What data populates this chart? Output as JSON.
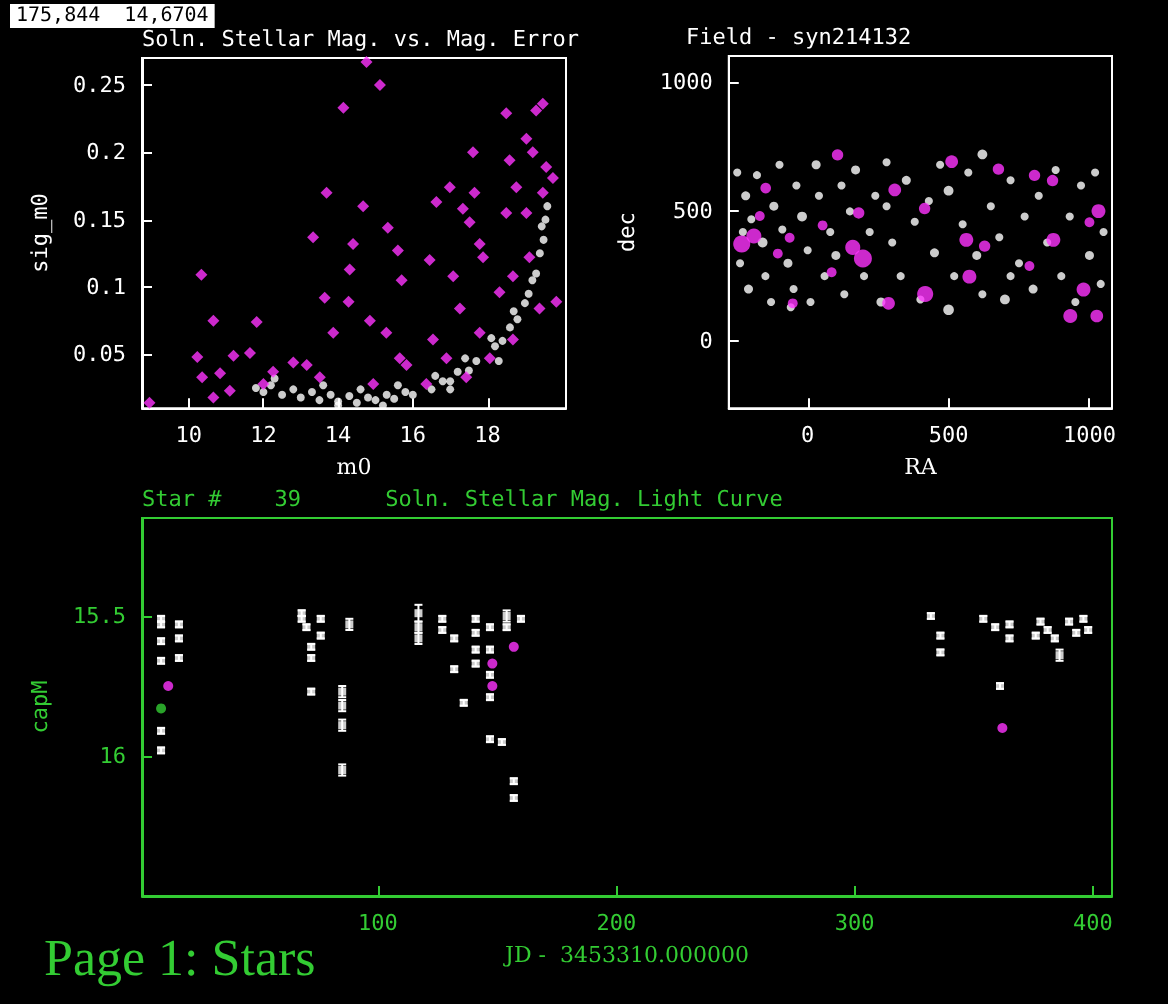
{
  "chart_data": [
    {
      "type": "scatter",
      "title": "Soln. Stellar Mag. vs. Mag. Error",
      "xlabel": "m0",
      "ylabel": "sig_m0",
      "annotations": [
        "175,844  14,6704"
      ],
      "xlim": [
        8.75,
        20.1
      ],
      "xticks": [
        10,
        12,
        14,
        16,
        18
      ],
      "ylim": [
        0.01,
        0.27
      ],
      "yticks": [
        0.05,
        0.1,
        0.15,
        0.2,
        0.25
      ],
      "series": [
        {
          "color": "#ffffff",
          "marker": "circle",
          "x": [
            11.8,
            12.0,
            12.2,
            12.5,
            12.8,
            13.0,
            13.3,
            13.5,
            13.8,
            14.0,
            14.3,
            14.5,
            14.8,
            15.0,
            15.3,
            15.5,
            15.8,
            16.0,
            16.3,
            16.5,
            16.8,
            17.0,
            17.2,
            17.5,
            17.7,
            18.0,
            18.2,
            18.4,
            18.6,
            18.8,
            19.0,
            19.1,
            19.2,
            19.3,
            19.4,
            19.5,
            19.55,
            19.6,
            12.3,
            13.6,
            14.6,
            15.6,
            16.6,
            17.4,
            18.1,
            18.7,
            19.2,
            19.45,
            17.0,
            18.3,
            15.2,
            14.0
          ],
          "values": [
            0.025,
            0.022,
            0.027,
            0.02,
            0.024,
            0.018,
            0.022,
            0.016,
            0.02,
            0.015,
            0.019,
            0.014,
            0.018,
            0.016,
            0.02,
            0.017,
            0.022,
            0.02,
            null,
            0.024,
            0.03,
            0.03,
            0.037,
            0.038,
            0.045,
            null,
            0.056,
            0.06,
            0.07,
            0.076,
            0.088,
            0.095,
            0.105,
            0.11,
            0.125,
            0.135,
            0.15,
            0.16,
            0.032,
            0.027,
            0.024,
            0.027,
            0.034,
            0.047,
            0.062,
            0.082,
            null,
            0.145,
            0.024,
            0.045,
            0.012,
            0.012
          ]
        },
        {
          "color": "#ff33ff",
          "marker": "diamond",
          "x": [
            8.95,
            10.34,
            10.23,
            10.36,
            10.66,
            10.84,
            11.2,
            11.82,
            11.64,
            10.66,
            11.1,
            12.0,
            12.26,
            12.8,
            13.33,
            13.69,
            13.64,
            14.14,
            13.87,
            14.28,
            14.31,
            14.67,
            14.76,
            14.4,
            15.12,
            14.85,
            15.33,
            15.6,
            15.7,
            15.29,
            15.83,
            16.45,
            16.63,
            16.99,
            17.08,
            17.34,
            17.52,
            17.61,
            17.65,
            17.79,
            17.88,
            17.26,
            17.79,
            16.54,
            16.9,
            15.65,
            18.5,
            18.59,
            18.77,
            19.04,
            19.21,
            19.3,
            19.48,
            19.57,
            19.48,
            19.75,
            19.84,
            19.39,
            19.12,
            19.04,
            18.68,
            18.5,
            18.32,
            18.68,
            18.06,
            17.43,
            16.36,
            14.94,
            13.51,
            13.16
          ],
          "values": [
            0.014,
            0.109,
            0.048,
            0.033,
            0.075,
            0.036,
            0.049,
            0.074,
            0.051,
            0.018,
            0.023,
            0.028,
            0.037,
            0.044,
            0.137,
            0.17,
            0.092,
            0.233,
            0.066,
            0.089,
            0.113,
            0.16,
            0.267,
            0.132,
            0.25,
            0.075,
            0.144,
            0.127,
            0.105,
            0.066,
            0.042,
            0.12,
            0.163,
            0.174,
            0.108,
            0.158,
            0.148,
            0.2,
            0.17,
            0.132,
            0.122,
            0.084,
            0.066,
            0.061,
            0.047,
            0.047,
            0.229,
            0.194,
            0.174,
            0.21,
            0.2,
            0.231,
            0.236,
            0.189,
            0.17,
            0.181,
            0.089,
            0.084,
            0.122,
            0.155,
            0.108,
            0.155,
            0.096,
            0.061,
            0.047,
            0.033,
            0.028,
            0.028,
            0.033,
            0.042
          ]
        }
      ]
    },
    {
      "type": "bubble",
      "title": "Field - syn214132",
      "xlabel": "RA",
      "ylabel": "dec",
      "xlim": [
        -280,
        1080
      ],
      "xticks": [
        0,
        500,
        1000
      ],
      "ylim": [
        -260,
        1100
      ],
      "yticks": [
        0,
        500,
        1000
      ],
      "series": [
        {
          "color": "#ffffff",
          "x": [
            -250,
            -220,
            -200,
            -240,
            -210,
            -180,
            -160,
            -150,
            -130,
            -120,
            -100,
            -90,
            -70,
            -50,
            -40,
            -20,
            0,
            10,
            30,
            40,
            60,
            80,
            100,
            120,
            130,
            150,
            170,
            200,
            220,
            240,
            260,
            280,
            300,
            330,
            350,
            380,
            400,
            430,
            450,
            470,
            500,
            500,
            520,
            550,
            570,
            600,
            620,
            620,
            650,
            680,
            700,
            720,
            750,
            770,
            800,
            820,
            850,
            880,
            900,
            930,
            950,
            970,
            1000,
            1020,
            1040,
            1050,
            -230,
            -60,
            280,
            720
          ],
          "values": [
            650,
            560,
            470,
            300,
            200,
            640,
            380,
            250,
            150,
            520,
            680,
            430,
            300,
            200,
            600,
            480,
            350,
            150,
            680,
            560,
            250,
            420,
            330,
            600,
            180,
            500,
            660,
            250,
            420,
            560,
            150,
            690,
            380,
            250,
            620,
            460,
            160,
            540,
            340,
            680,
            120,
            580,
            250,
            450,
            650,
            330,
            180,
            720,
            520,
            400,
            160,
            620,
            300,
            480,
            200,
            560,
            380,
            660,
            250,
            480,
            150,
            600,
            330,
            650,
            220,
            420,
            420,
            130,
            520,
            250
          ],
          "sizes": [
            0.2,
            0.25,
            0.2,
            0.2,
            0.25,
            0.2,
            0.3,
            0.2,
            0.2,
            0.25,
            0.2,
            0.2,
            0.25,
            0.2,
            0.2,
            0.3,
            0.2,
            0.2,
            0.25,
            0.2,
            0.2,
            0.2,
            0.25,
            0.2,
            0.2,
            0.2,
            0.25,
            0.2,
            0.2,
            0.2,
            0.25,
            0.2,
            0.2,
            0.2,
            0.25,
            0.2,
            0.2,
            0.2,
            0.25,
            0.2,
            0.35,
            0.3,
            0.2,
            0.2,
            0.2,
            0.25,
            0.2,
            0.3,
            0.2,
            0.2,
            0.3,
            0.2,
            0.2,
            0.2,
            0.25,
            0.2,
            0.2,
            0.2,
            0.2,
            0.2,
            0.2,
            0.2,
            0.25,
            0.2,
            0.2,
            0.2,
            0.2,
            0.2,
            0.2,
            0.2
          ]
        },
        {
          "color": "#ff33ff",
          "x": [
            -234,
            -191,
            196,
            160,
            417,
            574,
            563,
            872,
            979,
            932,
            1026,
            1032,
            287,
            309,
            511,
            106,
            181,
            415,
            677,
            805,
            869,
            628,
            -149,
            -170,
            -64,
            53,
            -53,
            85,
            787,
            1000,
            -106
          ],
          "values": [
            374,
            405,
            318,
            361,
            181,
            248,
            390,
            390,
            198,
            96,
            96,
            501,
            145,
            583,
            692,
            718,
            494,
            511,
            663,
            639,
            619,
            366,
            590,
            482,
            398,
            446,
            145,
            265,
            289,
            458,
            337
          ],
          "sizes": [
            0.9,
            0.7,
            1,
            0.7,
            0.8,
            0.6,
            0.6,
            0.6,
            0.6,
            0.6,
            0.5,
            0.6,
            0.5,
            0.5,
            0.5,
            0.4,
            0.4,
            0.4,
            0.4,
            0.4,
            0.4,
            0.4,
            0.35,
            0.3,
            0.3,
            0.3,
            0.3,
            0.3,
            0.3,
            0.3,
            0.3
          ]
        }
      ]
    },
    {
      "type": "scatter",
      "title": "Soln. Stellar Mag. Light Curve",
      "subtitle": "Star #    39",
      "xlabel": "JD -  3453310.000000",
      "ylabel": "capM",
      "annotations": [
        "Page 1: Stars"
      ],
      "xlim": [
        1,
        408
      ],
      "xticks": [
        100,
        200,
        300,
        400
      ],
      "ylim": [
        16.5,
        15.15
      ],
      "yticks": [
        15.5,
        16
      ],
      "series": [
        {
          "color": "#ffffff",
          "marker": "square",
          "x": [
            9,
            9,
            9,
            9,
            9,
            9,
            16.5,
            16.5,
            16.5,
            68,
            68,
            70,
            72,
            72,
            72,
            76,
            76,
            85,
            85,
            85,
            85,
            88,
            117,
            117,
            117,
            127,
            127,
            132,
            132,
            136,
            141,
            141,
            141,
            141,
            147,
            147,
            147,
            147,
            147,
            152,
            154,
            154,
            157,
            157,
            160,
            332,
            336,
            336,
            354,
            359,
            361,
            365,
            365,
            376,
            378,
            381,
            384,
            386,
            390,
            393,
            396,
            398
          ],
          "values": [
            15.51,
            15.53,
            15.59,
            15.66,
            15.91,
            15.98,
            15.53,
            15.58,
            15.65,
            15.49,
            15.51,
            15.54,
            15.61,
            15.65,
            15.77,
            15.51,
            15.57,
            15.77,
            15.82,
            15.89,
            16.05,
            15.53,
            15.49,
            15.54,
            15.58,
            15.51,
            15.55,
            15.58,
            15.69,
            15.81,
            15.51,
            15.56,
            15.62,
            15.67,
            15.54,
            15.62,
            15.71,
            15.79,
            15.94,
            15.95,
            15.5,
            15.54,
            16.09,
            16.15,
            15.51,
            15.5,
            15.57,
            15.63,
            15.51,
            15.54,
            15.75,
            15.53,
            15.58,
            15.57,
            15.52,
            15.55,
            15.58,
            15.64,
            15.52,
            15.56,
            15.51,
            15.55
          ],
          "errors": [
            0.01,
            0.01,
            0.01,
            0.01,
            0.01,
            0.01,
            0.01,
            0.01,
            0.01,
            0.01,
            0.01,
            0.01,
            0.01,
            0.01,
            0.01,
            0.01,
            0.01,
            0.02,
            0.02,
            0.02,
            0.02,
            0.02,
            0.03,
            0.02,
            0.02,
            0.01,
            0.01,
            0.01,
            0.01,
            0.01,
            0.01,
            0.01,
            0.01,
            0.01,
            0.01,
            0.01,
            0.01,
            0.01,
            0.01,
            0.01,
            0.02,
            0.01,
            0.01,
            0.01,
            0.01,
            0.01,
            0.01,
            0.01,
            0.01,
            0.01,
            0.01,
            0.01,
            0.01,
            0.01,
            0.01,
            0.01,
            0.01,
            0.02,
            0.01,
            0.01,
            0.01,
            0.01
          ]
        },
        {
          "color": "#ff33ff",
          "marker": "circle",
          "x": [
            12,
            148,
            148,
            157,
            362
          ],
          "values": [
            15.75,
            15.67,
            15.75,
            15.61,
            15.9
          ]
        },
        {
          "color": "#33cc33",
          "marker": "circle",
          "x": [
            9
          ],
          "values": [
            15.83
          ]
        }
      ]
    }
  ]
}
